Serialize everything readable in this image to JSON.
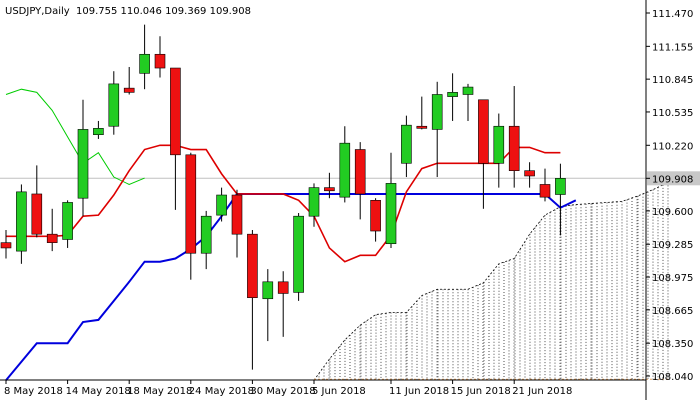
{
  "header": {
    "symbol": "USDJPY,Daily",
    "ohlc": "109.755 110.046 109.369 109.908"
  },
  "chart_data": {
    "type": "candlestick",
    "symbol": "USDJPY",
    "timeframe": "Daily",
    "current_price": 109.908,
    "ylim": [
      108.0,
      111.5
    ],
    "y_ticks": [
      "111.470",
      "111.155",
      "110.845",
      "110.535",
      "110.220",
      "109.908",
      "109.600",
      "109.285",
      "108.975",
      "108.665",
      "108.350",
      "108.040"
    ],
    "x_ticks": [
      "8 May 2018",
      "14 May 2018",
      "18 May 2018",
      "24 May 2018",
      "30 May 2018",
      "5 Jun 2018",
      "11 Jun 2018",
      "15 Jun 2018",
      "21 Jun 2018"
    ],
    "candles": [
      {
        "o": 109.3,
        "h": 109.42,
        "l": 109.15,
        "c": 109.25
      },
      {
        "o": 109.22,
        "h": 109.85,
        "l": 109.1,
        "c": 109.78
      },
      {
        "o": 109.76,
        "h": 110.03,
        "l": 109.35,
        "c": 109.38
      },
      {
        "o": 109.38,
        "h": 109.62,
        "l": 109.22,
        "c": 109.3
      },
      {
        "o": 109.33,
        "h": 109.7,
        "l": 109.25,
        "c": 109.68
      },
      {
        "o": 109.72,
        "h": 110.65,
        "l": 109.55,
        "c": 110.37
      },
      {
        "o": 110.32,
        "h": 110.45,
        "l": 110.28,
        "c": 110.38
      },
      {
        "o": 110.4,
        "h": 110.92,
        "l": 110.32,
        "c": 110.8
      },
      {
        "o": 110.76,
        "h": 110.96,
        "l": 110.7,
        "c": 110.72
      },
      {
        "o": 110.9,
        "h": 111.36,
        "l": 110.75,
        "c": 111.08
      },
      {
        "o": 111.08,
        "h": 111.25,
        "l": 110.86,
        "c": 110.95
      },
      {
        "o": 110.95,
        "h": 110.95,
        "l": 109.61,
        "c": 110.13
      },
      {
        "o": 110.13,
        "h": 110.15,
        "l": 108.95,
        "c": 109.2
      },
      {
        "o": 109.2,
        "h": 109.6,
        "l": 109.05,
        "c": 109.55
      },
      {
        "o": 109.56,
        "h": 109.82,
        "l": 109.5,
        "c": 109.75
      },
      {
        "o": 109.75,
        "h": 109.8,
        "l": 109.16,
        "c": 109.38
      },
      {
        "o": 109.38,
        "h": 109.42,
        "l": 108.1,
        "c": 108.78
      },
      {
        "o": 108.77,
        "h": 109.05,
        "l": 108.37,
        "c": 108.93
      },
      {
        "o": 108.93,
        "h": 109.03,
        "l": 108.41,
        "c": 108.82
      },
      {
        "o": 108.83,
        "h": 109.58,
        "l": 108.75,
        "c": 109.55
      },
      {
        "o": 109.55,
        "h": 109.86,
        "l": 109.45,
        "c": 109.82
      },
      {
        "o": 109.82,
        "h": 109.96,
        "l": 109.72,
        "c": 109.79
      },
      {
        "o": 109.73,
        "h": 110.4,
        "l": 109.68,
        "c": 110.24
      },
      {
        "o": 110.18,
        "h": 110.25,
        "l": 109.52,
        "c": 109.76
      },
      {
        "o": 109.7,
        "h": 109.72,
        "l": 109.31,
        "c": 109.41
      },
      {
        "o": 109.29,
        "h": 110.15,
        "l": 109.25,
        "c": 109.86
      },
      {
        "o": 110.05,
        "h": 110.5,
        "l": 109.92,
        "c": 110.41
      },
      {
        "o": 110.4,
        "h": 110.68,
        "l": 110.37,
        "c": 110.38
      },
      {
        "o": 110.37,
        "h": 110.82,
        "l": 109.92,
        "c": 110.7
      },
      {
        "o": 110.68,
        "h": 110.9,
        "l": 110.45,
        "c": 110.72
      },
      {
        "o": 110.7,
        "h": 110.8,
        "l": 110.45,
        "c": 110.77
      },
      {
        "o": 110.65,
        "h": 110.65,
        "l": 109.62,
        "c": 110.05
      },
      {
        "o": 110.05,
        "h": 110.52,
        "l": 109.82,
        "c": 110.4
      },
      {
        "o": 110.4,
        "h": 110.78,
        "l": 109.82,
        "c": 109.98
      },
      {
        "o": 109.98,
        "h": 110.06,
        "l": 109.82,
        "c": 109.93
      },
      {
        "o": 109.85,
        "h": 110.0,
        "l": 109.69,
        "c": 109.73
      },
      {
        "o": 109.755,
        "h": 110.046,
        "l": 109.369,
        "c": 109.908
      }
    ],
    "tenkan_sen": [
      [
        0,
        109.36
      ],
      [
        1,
        109.36
      ],
      [
        2,
        109.36
      ],
      [
        3,
        109.36
      ],
      [
        4,
        109.37
      ],
      [
        5,
        109.55
      ],
      [
        6,
        109.56
      ],
      [
        7,
        109.75
      ],
      [
        8,
        109.98
      ],
      [
        9,
        110.18
      ],
      [
        10,
        110.22
      ],
      [
        11,
        110.22
      ],
      [
        12,
        110.18
      ],
      [
        13,
        110.18
      ],
      [
        14,
        109.95
      ],
      [
        15,
        109.76
      ],
      [
        16,
        109.76
      ],
      [
        17,
        109.76
      ],
      [
        18,
        109.76
      ],
      [
        19,
        109.7
      ],
      [
        20,
        109.55
      ],
      [
        21,
        109.25
      ],
      [
        22,
        109.12
      ],
      [
        23,
        109.18
      ],
      [
        24,
        109.18
      ],
      [
        25,
        109.37
      ],
      [
        26,
        109.78
      ],
      [
        27,
        110.0
      ],
      [
        28,
        110.05
      ],
      [
        29,
        110.05
      ],
      [
        30,
        110.05
      ],
      [
        31,
        110.05
      ],
      [
        32,
        110.05
      ],
      [
        33,
        110.2
      ],
      [
        34,
        110.2
      ],
      [
        35,
        110.15
      ],
      [
        36,
        110.15
      ]
    ],
    "kijun_sen": [
      [
        0,
        108.0
      ],
      [
        2,
        108.35
      ],
      [
        3,
        108.35
      ],
      [
        4,
        108.35
      ],
      [
        5,
        108.55
      ],
      [
        6,
        108.57
      ],
      [
        7,
        108.75
      ],
      [
        8,
        108.93
      ],
      [
        9,
        109.12
      ],
      [
        10,
        109.12
      ],
      [
        11,
        109.15
      ],
      [
        12,
        109.24
      ],
      [
        13,
        109.36
      ],
      [
        14,
        109.55
      ],
      [
        15,
        109.76
      ],
      [
        20,
        109.76
      ],
      [
        25,
        109.76
      ],
      [
        30,
        109.76
      ],
      [
        35,
        109.76
      ],
      [
        36,
        109.63
      ],
      [
        37,
        109.7
      ]
    ],
    "chikou_span": [
      [
        0,
        110.7
      ],
      [
        1,
        110.75
      ],
      [
        2,
        110.72
      ],
      [
        3,
        110.55
      ],
      [
        4,
        110.3
      ],
      [
        5,
        110.05
      ],
      [
        6,
        110.15
      ],
      [
        7,
        109.92
      ],
      [
        8,
        109.85
      ],
      [
        9,
        109.91
      ]
    ],
    "cloud_upper": [
      [
        20,
        108.0
      ],
      [
        21,
        108.2
      ],
      [
        22,
        108.38
      ],
      [
        23,
        108.52
      ],
      [
        24,
        108.62
      ],
      [
        25,
        108.64
      ],
      [
        26,
        108.64
      ],
      [
        27,
        108.8
      ],
      [
        28,
        108.86
      ],
      [
        29,
        108.86
      ],
      [
        30,
        108.86
      ],
      [
        31,
        108.92
      ],
      [
        32,
        109.1
      ],
      [
        33,
        109.15
      ],
      [
        34,
        109.38
      ],
      [
        35,
        109.56
      ],
      [
        36,
        109.64
      ],
      [
        37,
        109.66
      ],
      [
        38,
        109.67
      ],
      [
        39,
        109.68
      ],
      [
        40,
        109.69
      ],
      [
        41,
        109.74
      ],
      [
        42,
        109.8
      ],
      [
        43,
        109.87
      ]
    ],
    "cloud_lower": 108.0
  }
}
